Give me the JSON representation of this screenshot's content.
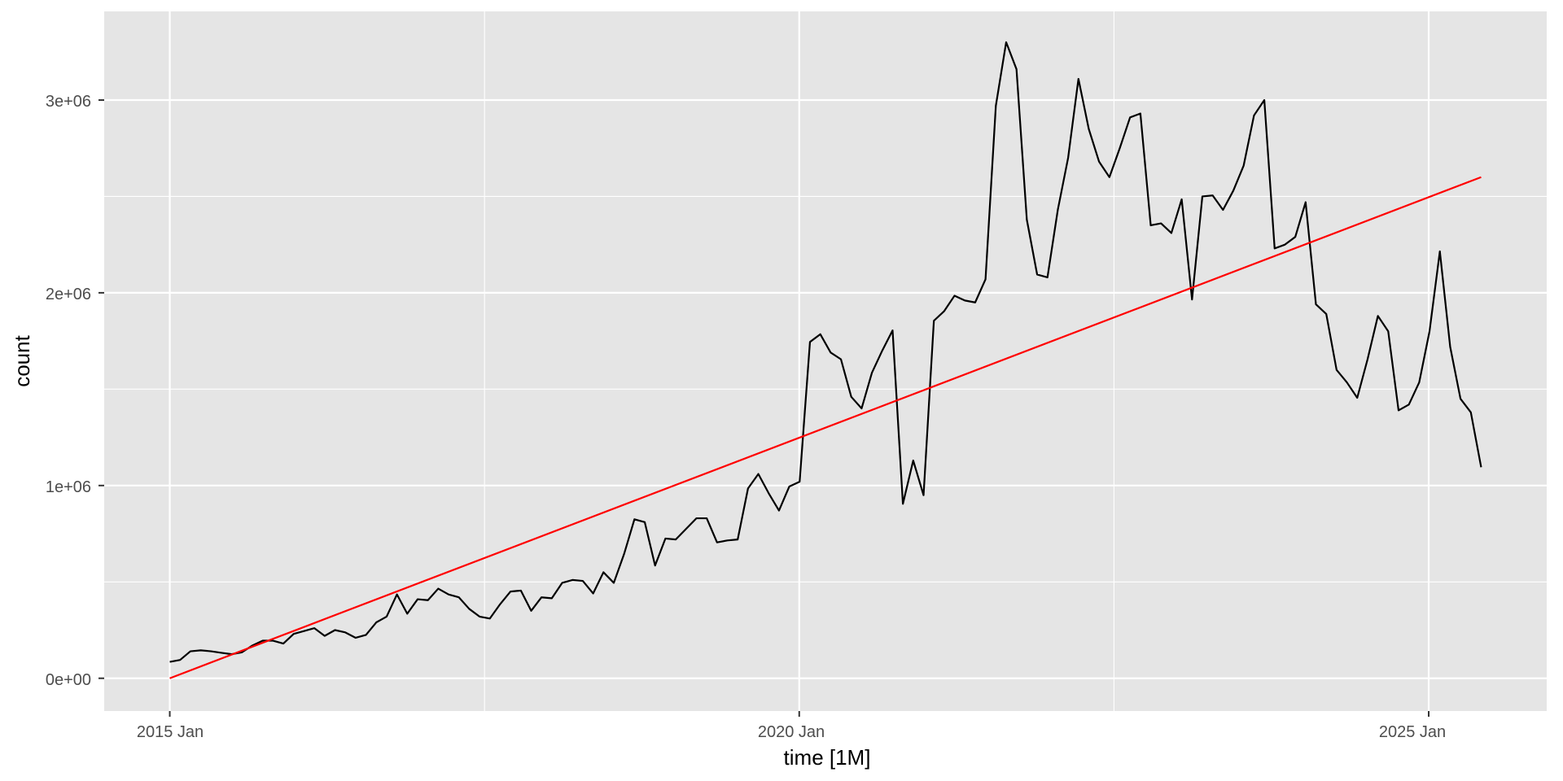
{
  "chart_data": {
    "type": "line",
    "title": "",
    "xlabel": "time [1M]",
    "ylabel": "count",
    "x_ticks": [
      "2015 Jan",
      "2020 Jan",
      "2025 Jan"
    ],
    "y_ticks": [
      "0e+00",
      "1e+06",
      "2e+06",
      "3e+06"
    ],
    "grid": true,
    "legend": "none",
    "colors": {
      "panel": "#e5e5e5",
      "grid": "#ffffff",
      "series": "#000000",
      "trend": "#ff0000"
    },
    "x_start": "2015-01",
    "x_end": "2025-06",
    "ylim": [
      -170000,
      3460000
    ],
    "series": [
      {
        "values": [
          85000,
          95000,
          140000,
          145000,
          140000,
          132000,
          125000,
          135000,
          170000,
          195000,
          195000,
          180000,
          230000,
          245000,
          260000,
          220000,
          250000,
          238000,
          210000,
          225000,
          290000,
          320000,
          435000,
          335000,
          410000,
          405000,
          465000,
          435000,
          420000,
          360000,
          320000,
          310000,
          385000,
          450000,
          455000,
          350000,
          420000,
          415000,
          495000,
          510000,
          505000,
          440000,
          550000,
          495000,
          645000,
          825000,
          810000,
          585000,
          725000,
          720000,
          775000,
          830000,
          830000,
          705000,
          715000,
          720000,
          985000,
          1060000,
          960000,
          870000,
          995000,
          1020000,
          1745000,
          1785000,
          1690000,
          1655000,
          1460000,
          1400000,
          1585000,
          1700000,
          1805000,
          905000,
          1130000,
          950000,
          1855000,
          1905000,
          1985000,
          1960000,
          1950000,
          2070000,
          2970000,
          3300000,
          3160000,
          2380000,
          2095000,
          2080000,
          2430000,
          2700000,
          3110000,
          2850000,
          2680000,
          2600000,
          2750000,
          2910000,
          2930000,
          2350000,
          2360000,
          2310000,
          2485000,
          1965000,
          2500000,
          2505000,
          2430000,
          2530000,
          2660000,
          2920000,
          3000000,
          2230000,
          2250000,
          2290000,
          2470000,
          1940000,
          1890000,
          1600000,
          1535000,
          1455000,
          1655000,
          1880000,
          1800000,
          1390000,
          1420000,
          1535000,
          1800000,
          2215000,
          1720000,
          1450000,
          1380000,
          1095000
        ]
      },
      {
        "values": [
          0,
          2600000
        ]
      }
    ]
  }
}
